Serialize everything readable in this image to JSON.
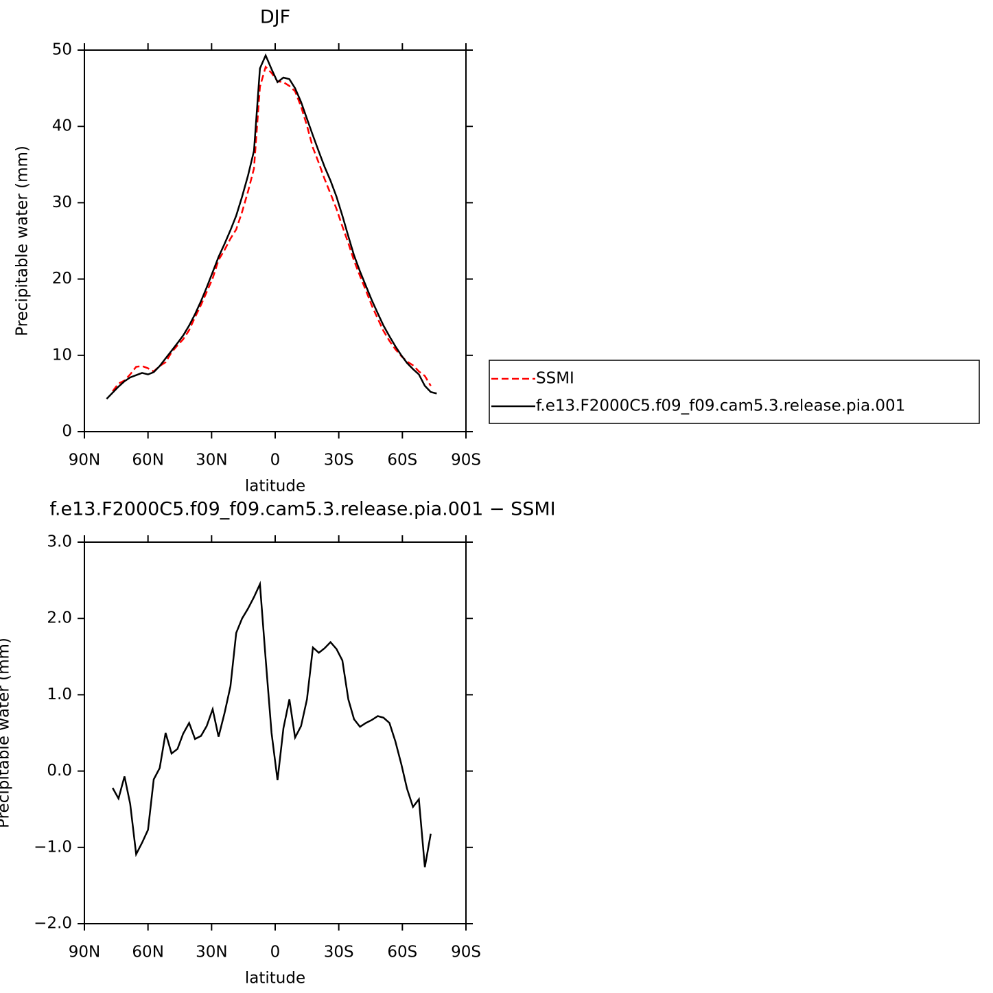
{
  "chart_data": [
    {
      "type": "line",
      "title": "DJF",
      "xlabel": "latitude",
      "ylabel": "Precipitable water (mm)",
      "x": [
        79.5,
        76.7,
        73.9,
        71.1,
        68.4,
        65.6,
        62.8,
        60.0,
        57.3,
        54.5,
        51.7,
        48.9,
        46.1,
        43.4,
        40.6,
        37.8,
        35.0,
        32.3,
        29.5,
        26.7,
        23.9,
        21.1,
        18.4,
        15.6,
        12.8,
        10.0,
        7.2,
        4.5,
        1.7,
        -1.1,
        -3.9,
        -6.7,
        -9.4,
        -12.2,
        -15.0,
        -17.8,
        -20.6,
        -23.3,
        -26.1,
        -28.9,
        -31.7,
        -34.5,
        -37.2,
        -40.0,
        -42.8,
        -45.6,
        -48.4,
        -51.1,
        -53.9,
        -56.7,
        -59.5,
        -62.2,
        -65.0,
        -67.8,
        -70.6,
        -73.4,
        -76.2
      ],
      "series": [
        {
          "name": "SSMI",
          "color": "#ff0000",
          "linestyle": "dashed",
          "values": [
            null,
            5.3,
            6.3,
            6.7,
            7.5,
            8.5,
            8.6,
            8.3,
            7.9,
            8.6,
            9.1,
            10.4,
            11.3,
            12.1,
            13.3,
            15.0,
            16.6,
            18.3,
            20.1,
            22.5,
            23.8,
            25.3,
            26.5,
            28.8,
            31.5,
            34.5,
            45.2,
            47.8,
            47.0,
            45.9,
            45.8,
            45.3,
            44.6,
            42.6,
            40.1,
            37.2,
            35.2,
            33.1,
            31.2,
            29.2,
            26.9,
            24.7,
            22.4,
            20.4,
            18.5,
            16.5,
            14.8,
            13.2,
            11.9,
            10.8,
            9.9,
            9.2,
            8.7,
            7.9,
            7.3,
            6.0,
            null
          ]
        },
        {
          "name": "f.e13.F2000C5.f09_f09.cam5.3.release.pia.001",
          "color": "#000000",
          "linestyle": "solid",
          "values": [
            4.3,
            5.1,
            5.9,
            6.6,
            7.1,
            7.4,
            7.7,
            7.5,
            7.8,
            8.6,
            9.6,
            10.6,
            11.6,
            12.6,
            13.9,
            15.4,
            17.1,
            18.9,
            20.9,
            22.9,
            24.6,
            26.4,
            28.3,
            30.8,
            33.6,
            36.8,
            47.6,
            49.3,
            47.5,
            45.8,
            46.4,
            46.2,
            45.0,
            43.2,
            41.0,
            38.8,
            36.7,
            34.7,
            32.9,
            30.8,
            28.3,
            25.6,
            23.1,
            21.0,
            19.1,
            17.2,
            15.5,
            13.9,
            12.5,
            11.2,
            10.0,
            9.0,
            8.2,
            7.5,
            6.0,
            5.2,
            5.0
          ]
        }
      ],
      "xlim": [
        90,
        -90
      ],
      "xticks": [
        {
          "value": 90,
          "label": "90N"
        },
        {
          "value": 60,
          "label": "60N"
        },
        {
          "value": 30,
          "label": "30N"
        },
        0,
        {
          "value": -30,
          "label": "30S"
        },
        {
          "value": -60,
          "label": "60S"
        },
        {
          "value": -90,
          "label": "90S"
        }
      ],
      "ylim": [
        0,
        50
      ],
      "yticks": [
        0,
        10,
        20,
        30,
        40,
        50
      ],
      "legend": "right"
    },
    {
      "type": "line",
      "title": "f.e13.F2000C5.f09_f09.cam5.3.release.pia.001 − SSMI",
      "xlabel": "latitude",
      "ylabel": "Precipitable water (mm)",
      "x": [
        76.7,
        73.9,
        71.1,
        68.4,
        65.6,
        62.8,
        60.0,
        57.3,
        54.5,
        51.7,
        48.9,
        46.1,
        43.4,
        40.6,
        37.8,
        35.0,
        32.3,
        29.5,
        26.7,
        23.9,
        21.1,
        18.4,
        15.6,
        12.8,
        10.0,
        7.2,
        4.5,
        1.7,
        -1.1,
        -3.9,
        -6.7,
        -9.4,
        -12.2,
        -15.0,
        -17.8,
        -20.6,
        -23.3,
        -26.1,
        -28.9,
        -31.7,
        -34.5,
        -37.2,
        -40.0,
        -42.8,
        -45.6,
        -48.4,
        -51.1,
        -53.9,
        -56.7,
        -59.5,
        -62.2,
        -65.0,
        -67.8,
        -70.6,
        -73.4
      ],
      "series": [
        {
          "color": "#000000",
          "linestyle": "solid",
          "values": [
            -0.22,
            -0.36,
            -0.07,
            -0.43,
            -1.09,
            -0.94,
            -0.77,
            -0.11,
            0.04,
            0.5,
            0.23,
            0.29,
            0.49,
            0.63,
            0.42,
            0.46,
            0.59,
            0.81,
            0.45,
            0.76,
            1.11,
            1.81,
            2.0,
            2.13,
            2.28,
            2.45,
            1.47,
            0.5,
            -0.12,
            0.56,
            0.94,
            0.44,
            0.59,
            0.94,
            1.62,
            1.55,
            1.61,
            1.69,
            1.6,
            1.45,
            0.94,
            0.68,
            0.58,
            0.63,
            0.67,
            0.72,
            0.7,
            0.63,
            0.39,
            0.09,
            -0.23,
            -0.47,
            -0.37,
            -1.26,
            -0.82
          ]
        }
      ],
      "xlim": [
        90,
        -90
      ],
      "xticks": [
        {
          "value": 90,
          "label": "90N"
        },
        {
          "value": 60,
          "label": "60N"
        },
        {
          "value": 30,
          "label": "30N"
        },
        0,
        {
          "value": -30,
          "label": "30S"
        },
        {
          "value": -60,
          "label": "60S"
        },
        {
          "value": -90,
          "label": "90S"
        }
      ],
      "ylim": [
        -2,
        3
      ],
      "yticks": [
        {
          "value": -2,
          "label": "−2.0"
        },
        {
          "value": -1,
          "label": "−1.0"
        },
        {
          "value": 0,
          "label": "0.0"
        },
        {
          "value": 1,
          "label": "1.0"
        },
        {
          "value": 2,
          "label": "2.0"
        },
        {
          "value": 3,
          "label": "3.0"
        }
      ]
    }
  ]
}
